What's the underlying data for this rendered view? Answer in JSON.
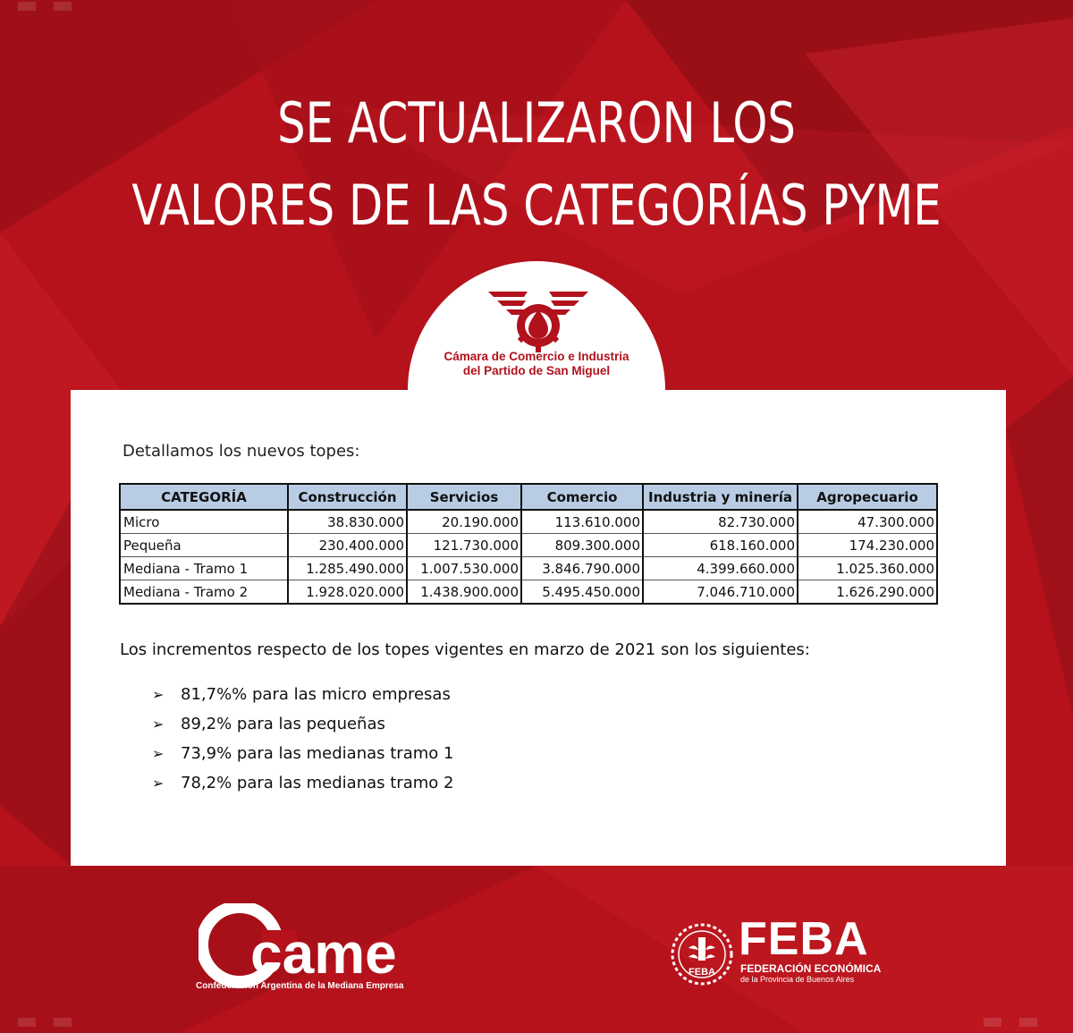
{
  "title": {
    "line1": "SE ACTUALIZARON LOS",
    "line2": "VALORES DE LAS CATEGORÍAS PYME"
  },
  "chamber": {
    "line1": "Cámara de Comercio e Industria",
    "line2": "del Partido de San Miguel",
    "emblem_icon": "winged-drop-gear-icon"
  },
  "card": {
    "intro": "Detallamos los nuevos topes:",
    "table": {
      "headers": [
        "CATEGORÍA",
        "Construcción",
        "Servicios",
        "Comercio",
        "Industria y minería",
        "Agropecuario"
      ],
      "rows": [
        [
          "Micro",
          "38.830.000",
          "20.190.000",
          "113.610.000",
          "82.730.000",
          "47.300.000"
        ],
        [
          "Pequeña",
          "230.400.000",
          "121.730.000",
          "809.300.000",
          "618.160.000",
          "174.230.000"
        ],
        [
          "Mediana - Tramo 1",
          "1.285.490.000",
          "1.007.530.000",
          "3.846.790.000",
          "4.399.660.000",
          "1.025.360.000"
        ],
        [
          "Mediana - Tramo 2",
          "1.928.020.000",
          "1.438.900.000",
          "5.495.450.000",
          "7.046.710.000",
          "1.626.290.000"
        ]
      ]
    },
    "increments_intro": "Los incrementos respecto de los topes vigentes en marzo de 2021 son los siguientes:",
    "bullet_glyph": "➢",
    "bullets": [
      "81,7%% para las micro empresas",
      "89,2% para las pequeñas",
      "73,9% para las medianas tramo 1",
      "78,2% para las medianas tramo 2"
    ]
  },
  "footer": {
    "came": {
      "logo_text": "came",
      "caption": "Confederación Argentina de la Mediana Empresa"
    },
    "feba": {
      "seal_text": "FEBA",
      "name": "FEBA",
      "caption1": "FEDERACIÓN ECONÓMICA",
      "caption2": "de la Provincia de Buenos Aires"
    }
  },
  "colors": {
    "background": "#b5121b",
    "header_fill": "#b8cce4",
    "brand_red": "#b1121c"
  }
}
